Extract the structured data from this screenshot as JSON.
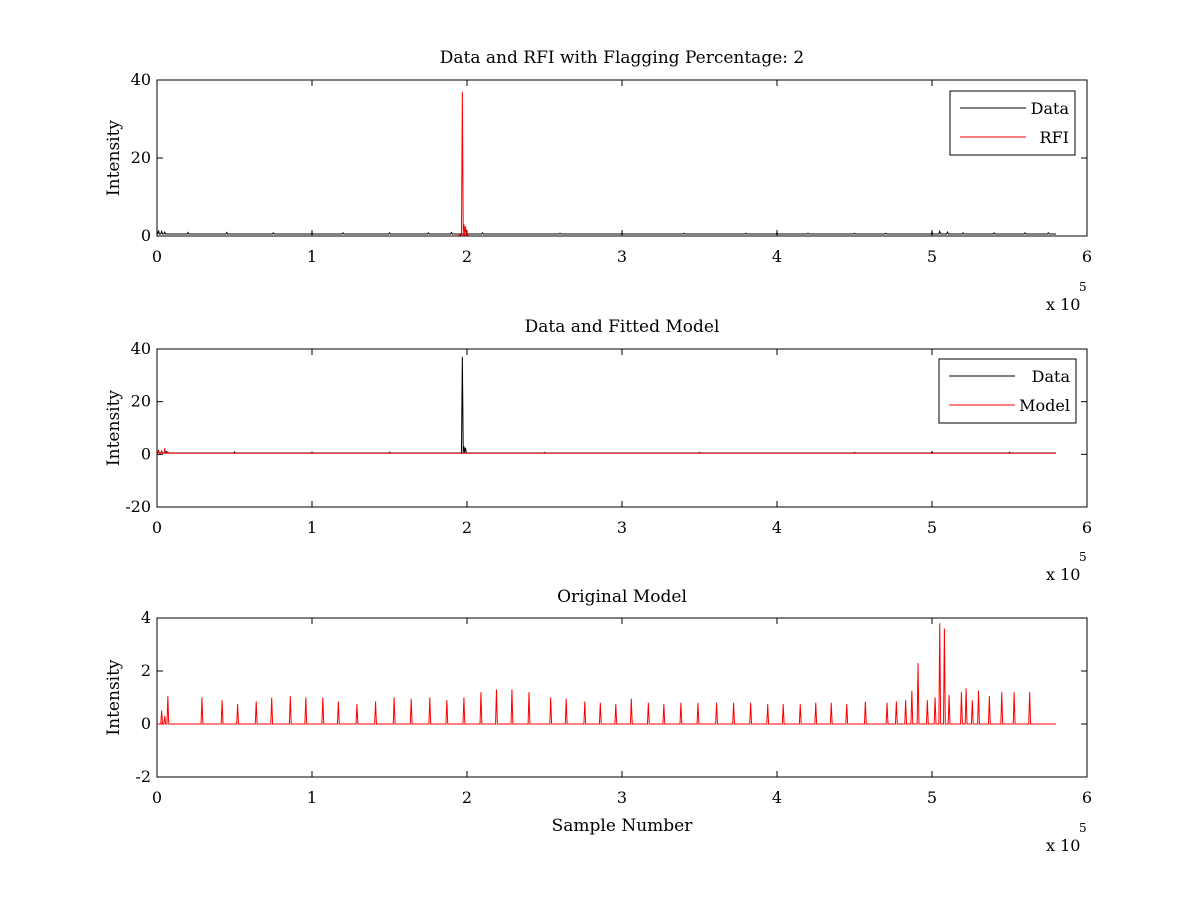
{
  "colors": {
    "data": "#000000",
    "rfi": "#ff0000",
    "model": "#ff0000",
    "axes": "#000000",
    "background": "#ffffff"
  },
  "chart_data": [
    {
      "type": "line",
      "title": "Data and RFI with Flagging Percentage: 2",
      "xlabel": "",
      "ylabel": "Intensity",
      "xlim": [
        0,
        600000
      ],
      "ylim": [
        0,
        40
      ],
      "xticks": [
        "0",
        "1",
        "2",
        "3",
        "4",
        "5",
        "6"
      ],
      "yticks": [
        "0",
        "20",
        "40"
      ],
      "x_multiplier": {
        "base": "x 10",
        "exponent": "5"
      },
      "legend": {
        "position": "top-right",
        "entries": [
          "Data",
          "RFI"
        ]
      },
      "grid": false,
      "series": [
        {
          "name": "Data",
          "baseline": 0.5,
          "x_end": 580000,
          "x_peaks": [
            1000,
            3000,
            5000,
            20000,
            45000,
            75000,
            100000,
            120000,
            150000,
            175000,
            190000,
            210000,
            260000,
            300000,
            340000,
            380000,
            400000,
            420000,
            450000,
            470000,
            500000,
            505000,
            510000,
            520000,
            540000,
            560000,
            575000
          ],
          "y_peaks": [
            1.4,
            1.2,
            1.0,
            0.9,
            0.9,
            0.8,
            0.8,
            0.8,
            0.8,
            0.8,
            0.9,
            0.8,
            0.7,
            0.7,
            0.7,
            0.7,
            0.8,
            0.7,
            0.7,
            0.7,
            1.0,
            1.2,
            1.0,
            0.8,
            0.8,
            0.8,
            0.8
          ]
        },
        {
          "name": "RFI",
          "x_start": 193000,
          "x_end": 202000,
          "x_peaks": [
            197000,
            198000,
            199000
          ],
          "y_peaks": [
            37,
            3.0,
            2.5
          ]
        }
      ]
    },
    {
      "type": "line",
      "title": "Data and Fitted Model",
      "xlabel": "",
      "ylabel": "Intensity",
      "xlim": [
        0,
        600000
      ],
      "ylim": [
        -20,
        40
      ],
      "xticks": [
        "0",
        "1",
        "2",
        "3",
        "4",
        "5",
        "6"
      ],
      "yticks": [
        "-20",
        "0",
        "20",
        "40"
      ],
      "x_multiplier": {
        "base": "x 10",
        "exponent": "5"
      },
      "legend": {
        "position": "top-right",
        "entries": [
          "Data",
          "Model"
        ]
      },
      "grid": false,
      "series": [
        {
          "name": "Data",
          "baseline": 0.5,
          "x_end": 580000,
          "x_peaks": [
            1000,
            3000,
            6000,
            50000,
            100000,
            150000,
            197000,
            198000,
            199000,
            250000,
            350000,
            450000,
            500000,
            550000
          ],
          "y_peaks": [
            1.4,
            1.2,
            1.0,
            0.9,
            0.8,
            0.8,
            37,
            3.0,
            2.5,
            0.7,
            0.7,
            0.7,
            1.0,
            0.8
          ]
        },
        {
          "name": "Model",
          "baseline": 0.4,
          "x_end": 580000,
          "x_peaks": [
            1000,
            3000,
            5000,
            7000
          ],
          "y_peaks": [
            1.2,
            1.0,
            2.3,
            1.0
          ]
        }
      ]
    },
    {
      "type": "line",
      "title": "Original Model",
      "xlabel": "Sample Number",
      "ylabel": "Intensity",
      "xlim": [
        0,
        600000
      ],
      "ylim": [
        -2,
        4
      ],
      "xticks": [
        "0",
        "1",
        "2",
        "3",
        "4",
        "5",
        "6"
      ],
      "yticks": [
        "-2",
        "0",
        "2",
        "4"
      ],
      "x_multiplier": {
        "base": "x 10",
        "exponent": "5"
      },
      "legend": null,
      "grid": false,
      "series": [
        {
          "name": "",
          "baseline": 0,
          "x_end": 580000,
          "x_peaks": [
            3000,
            5000,
            7000,
            29000,
            42000,
            52000,
            64000,
            74000,
            86000,
            96000,
            107000,
            117000,
            129000,
            141000,
            153000,
            164000,
            176000,
            187000,
            198000,
            209000,
            219000,
            229000,
            240000,
            254000,
            264000,
            276000,
            286000,
            296000,
            306000,
            317000,
            327000,
            338000,
            349000,
            361000,
            372000,
            383000,
            394000,
            404000,
            415000,
            425000,
            435000,
            445000,
            457000,
            471000,
            477000,
            483000,
            487000,
            491000,
            497000,
            502000,
            505000,
            508000,
            511000,
            519000,
            522000,
            526000,
            530000,
            537000,
            545000,
            553000,
            563000
          ],
          "y_peaks": [
            0.5,
            0.3,
            1.05,
            1.0,
            0.9,
            0.75,
            0.85,
            1.0,
            1.05,
            1.0,
            1.0,
            0.85,
            0.75,
            0.85,
            1.0,
            0.95,
            1.0,
            0.9,
            1.0,
            1.2,
            1.3,
            1.3,
            1.2,
            1.0,
            0.95,
            0.85,
            0.8,
            0.75,
            0.95,
            0.8,
            0.75,
            0.8,
            0.8,
            0.8,
            0.8,
            0.8,
            0.75,
            0.75,
            0.75,
            0.8,
            0.8,
            0.75,
            0.85,
            0.8,
            0.85,
            0.9,
            1.25,
            2.3,
            0.9,
            1.0,
            3.8,
            3.6,
            1.1,
            1.2,
            1.35,
            0.9,
            1.25,
            1.05,
            1.2,
            1.2,
            1.2
          ]
        }
      ]
    }
  ]
}
